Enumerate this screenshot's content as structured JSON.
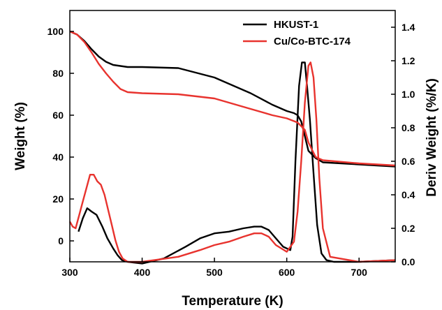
{
  "chart_data": {
    "type": "line",
    "xlabel": "Temperature (K)",
    "ylabel_left": "Weight (%)",
    "ylabel_right": "Deriv Weight (%/K)",
    "xlim": [
      300,
      750
    ],
    "ylim_left": [
      -10,
      110
    ],
    "ylim_right": [
      0.0,
      1.5
    ],
    "x_ticks": [
      300,
      400,
      500,
      600,
      700
    ],
    "y_left_ticks": [
      0,
      20,
      40,
      60,
      80,
      100
    ],
    "y_right_ticks": [
      0.0,
      0.2,
      0.4,
      0.6,
      0.8,
      1.0,
      1.2,
      1.4
    ],
    "legend_position": "top-right",
    "series": [
      {
        "name": "HKUST-1",
        "color": "#000000",
        "weight": {
          "x": [
            300,
            310,
            320,
            330,
            340,
            350,
            360,
            380,
            400,
            450,
            500,
            550,
            580,
            600,
            610,
            615,
            620,
            625,
            630,
            640,
            650,
            700,
            750
          ],
          "y": [
            100,
            98.5,
            95.5,
            91.5,
            88,
            85.5,
            84,
            83,
            83,
            82.5,
            78,
            70.5,
            65,
            62,
            61,
            60,
            57,
            50,
            43,
            39.5,
            37.5,
            36.5,
            35.5
          ]
        },
        "derivative": {
          "x": [
            312,
            318,
            324,
            330,
            337,
            345,
            352,
            360,
            366,
            372,
            380,
            400,
            430,
            460,
            480,
            500,
            520,
            540,
            555,
            565,
            575,
            585,
            595,
            605,
            608,
            612,
            617,
            621,
            625,
            628,
            632,
            637,
            642,
            648,
            655,
            665,
            700,
            750
          ],
          "y": [
            0.18,
            0.26,
            0.32,
            0.3,
            0.28,
            0.21,
            0.14,
            0.08,
            0.04,
            0.01,
            0.0,
            -0.01,
            0.02,
            0.09,
            0.14,
            0.17,
            0.18,
            0.2,
            0.21,
            0.21,
            0.19,
            0.14,
            0.09,
            0.07,
            0.15,
            0.6,
            1.05,
            1.19,
            1.19,
            1.05,
            0.85,
            0.53,
            0.22,
            0.05,
            0.01,
            0.0,
            0.0,
            0.01
          ]
        }
      },
      {
        "name": "Cu/Co-BTC-174",
        "color": "#e8332e",
        "weight": {
          "x": [
            300,
            310,
            320,
            330,
            340,
            350,
            360,
            370,
            380,
            400,
            450,
            500,
            550,
            580,
            600,
            615,
            625,
            630,
            640,
            650,
            700,
            750
          ],
          "y": [
            100,
            98.5,
            95,
            90,
            84.5,
            80,
            76,
            72.5,
            71,
            70.5,
            70,
            68,
            63,
            60,
            58.5,
            56.5,
            53,
            47,
            40,
            38.5,
            37,
            36
          ]
        },
        "derivative": {
          "x": [
            300,
            304,
            308,
            313,
            318,
            323,
            328,
            333,
            338,
            343,
            348,
            353,
            358,
            363,
            368,
            373,
            380,
            390,
            400,
            450,
            480,
            500,
            520,
            540,
            555,
            565,
            575,
            585,
            600,
            610,
            615,
            620,
            625,
            630,
            633,
            637,
            641,
            645,
            650,
            660,
            700,
            750
          ],
          "y": [
            0.24,
            0.21,
            0.2,
            0.28,
            0.36,
            0.44,
            0.52,
            0.52,
            0.48,
            0.46,
            0.4,
            0.31,
            0.22,
            0.13,
            0.06,
            0.02,
            0.0,
            0.0,
            0.0,
            0.03,
            0.07,
            0.1,
            0.12,
            0.15,
            0.17,
            0.17,
            0.15,
            0.1,
            0.06,
            0.12,
            0.3,
            0.6,
            0.95,
            1.17,
            1.19,
            1.1,
            0.85,
            0.5,
            0.2,
            0.03,
            0.0,
            0.01
          ]
        }
      }
    ]
  }
}
